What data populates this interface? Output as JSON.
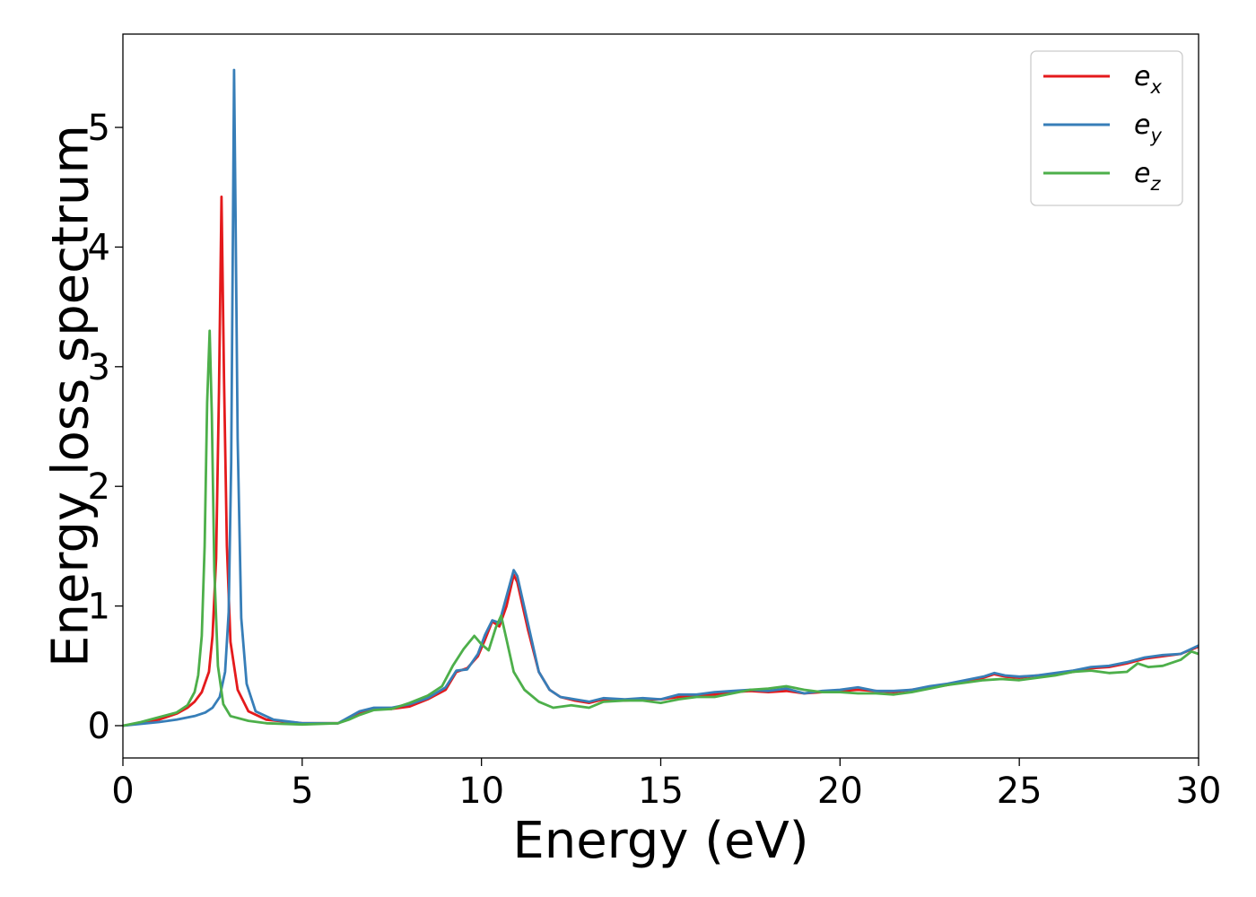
{
  "chart_data": {
    "type": "line",
    "title": "",
    "xlabel": "Energy (eV)",
    "ylabel": "Energy loss spectrum",
    "xlim": [
      0,
      30
    ],
    "ylim": [
      -0.27,
      5.78
    ],
    "xticks": [
      0,
      5,
      10,
      15,
      20,
      25,
      30
    ],
    "yticks": [
      0,
      1,
      2,
      3,
      4,
      5
    ],
    "grid": false,
    "legend_position": "top-right",
    "series": [
      {
        "name": "e_x",
        "label_base": "e",
        "label_sub": "x",
        "color": "#e41a1c",
        "points": [
          [
            0,
            0
          ],
          [
            0.5,
            0.02
          ],
          [
            1.0,
            0.05
          ],
          [
            1.5,
            0.1
          ],
          [
            1.8,
            0.15
          ],
          [
            2.0,
            0.2
          ],
          [
            2.2,
            0.28
          ],
          [
            2.4,
            0.45
          ],
          [
            2.5,
            0.75
          ],
          [
            2.6,
            1.4
          ],
          [
            2.68,
            2.8
          ],
          [
            2.75,
            4.42
          ],
          [
            2.82,
            2.9
          ],
          [
            2.9,
            1.5
          ],
          [
            3.0,
            0.7
          ],
          [
            3.2,
            0.3
          ],
          [
            3.5,
            0.12
          ],
          [
            4.0,
            0.05
          ],
          [
            5.0,
            0.02
          ],
          [
            6.0,
            0.02
          ],
          [
            6.3,
            0.06
          ],
          [
            6.6,
            0.1
          ],
          [
            7.0,
            0.14
          ],
          [
            7.5,
            0.14
          ],
          [
            8.0,
            0.16
          ],
          [
            8.5,
            0.22
          ],
          [
            9.0,
            0.3
          ],
          [
            9.3,
            0.45
          ],
          [
            9.6,
            0.48
          ],
          [
            9.9,
            0.58
          ],
          [
            10.1,
            0.72
          ],
          [
            10.3,
            0.87
          ],
          [
            10.5,
            0.83
          ],
          [
            10.7,
            1.0
          ],
          [
            10.9,
            1.26
          ],
          [
            11.0,
            1.2
          ],
          [
            11.3,
            0.8
          ],
          [
            11.6,
            0.45
          ],
          [
            11.9,
            0.3
          ],
          [
            12.2,
            0.24
          ],
          [
            12.6,
            0.21
          ],
          [
            13.0,
            0.19
          ],
          [
            13.4,
            0.22
          ],
          [
            14.0,
            0.21
          ],
          [
            14.5,
            0.22
          ],
          [
            15.0,
            0.22
          ],
          [
            15.5,
            0.24
          ],
          [
            16.0,
            0.25
          ],
          [
            16.5,
            0.26
          ],
          [
            17.0,
            0.28
          ],
          [
            17.5,
            0.29
          ],
          [
            18.0,
            0.28
          ],
          [
            18.5,
            0.29
          ],
          [
            19.0,
            0.27
          ],
          [
            19.5,
            0.28
          ],
          [
            20.0,
            0.29
          ],
          [
            20.5,
            0.3
          ],
          [
            21.0,
            0.29
          ],
          [
            21.5,
            0.28
          ],
          [
            22.0,
            0.3
          ],
          [
            22.5,
            0.32
          ],
          [
            23.0,
            0.34
          ],
          [
            23.5,
            0.37
          ],
          [
            24.0,
            0.4
          ],
          [
            24.3,
            0.43
          ],
          [
            24.6,
            0.41
          ],
          [
            25.0,
            0.4
          ],
          [
            25.5,
            0.42
          ],
          [
            26.0,
            0.43
          ],
          [
            26.5,
            0.45
          ],
          [
            27.0,
            0.48
          ],
          [
            27.5,
            0.49
          ],
          [
            28.0,
            0.52
          ],
          [
            28.5,
            0.56
          ],
          [
            29.0,
            0.58
          ],
          [
            29.5,
            0.6
          ],
          [
            30.0,
            0.66
          ]
        ]
      },
      {
        "name": "e_y",
        "label_base": "e",
        "label_sub": "y",
        "color": "#377eb8",
        "points": [
          [
            0,
            0
          ],
          [
            0.5,
            0.015
          ],
          [
            1.0,
            0.03
          ],
          [
            1.5,
            0.05
          ],
          [
            2.0,
            0.08
          ],
          [
            2.3,
            0.11
          ],
          [
            2.5,
            0.15
          ],
          [
            2.7,
            0.24
          ],
          [
            2.85,
            0.45
          ],
          [
            2.95,
            0.95
          ],
          [
            3.02,
            2.2
          ],
          [
            3.07,
            4.2
          ],
          [
            3.1,
            5.48
          ],
          [
            3.14,
            4.3
          ],
          [
            3.2,
            2.4
          ],
          [
            3.3,
            0.9
          ],
          [
            3.45,
            0.35
          ],
          [
            3.7,
            0.12
          ],
          [
            4.2,
            0.05
          ],
          [
            5.0,
            0.02
          ],
          [
            6.0,
            0.02
          ],
          [
            6.3,
            0.07
          ],
          [
            6.6,
            0.12
          ],
          [
            7.0,
            0.15
          ],
          [
            7.5,
            0.15
          ],
          [
            8.0,
            0.18
          ],
          [
            8.5,
            0.23
          ],
          [
            9.0,
            0.32
          ],
          [
            9.3,
            0.46
          ],
          [
            9.6,
            0.47
          ],
          [
            9.9,
            0.6
          ],
          [
            10.1,
            0.76
          ],
          [
            10.3,
            0.88
          ],
          [
            10.5,
            0.86
          ],
          [
            10.7,
            1.08
          ],
          [
            10.9,
            1.3
          ],
          [
            11.0,
            1.25
          ],
          [
            11.3,
            0.85
          ],
          [
            11.6,
            0.45
          ],
          [
            11.9,
            0.3
          ],
          [
            12.2,
            0.24
          ],
          [
            12.6,
            0.22
          ],
          [
            13.0,
            0.2
          ],
          [
            13.4,
            0.23
          ],
          [
            14.0,
            0.22
          ],
          [
            14.5,
            0.23
          ],
          [
            15.0,
            0.22
          ],
          [
            15.5,
            0.26
          ],
          [
            16.0,
            0.26
          ],
          [
            16.5,
            0.28
          ],
          [
            17.0,
            0.29
          ],
          [
            17.5,
            0.3
          ],
          [
            18.0,
            0.29
          ],
          [
            18.5,
            0.31
          ],
          [
            19.0,
            0.27
          ],
          [
            19.5,
            0.29
          ],
          [
            20.0,
            0.3
          ],
          [
            20.5,
            0.32
          ],
          [
            21.0,
            0.29
          ],
          [
            21.5,
            0.29
          ],
          [
            22.0,
            0.3
          ],
          [
            22.5,
            0.33
          ],
          [
            23.0,
            0.35
          ],
          [
            23.5,
            0.38
          ],
          [
            24.0,
            0.41
          ],
          [
            24.3,
            0.44
          ],
          [
            24.6,
            0.42
          ],
          [
            25.0,
            0.41
          ],
          [
            25.5,
            0.42
          ],
          [
            26.0,
            0.44
          ],
          [
            26.5,
            0.46
          ],
          [
            27.0,
            0.49
          ],
          [
            27.5,
            0.5
          ],
          [
            28.0,
            0.53
          ],
          [
            28.5,
            0.57
          ],
          [
            29.0,
            0.59
          ],
          [
            29.5,
            0.6
          ],
          [
            30.0,
            0.67
          ]
        ]
      },
      {
        "name": "e_z",
        "label_base": "e",
        "label_sub": "z",
        "color": "#4daf4a",
        "points": [
          [
            0,
            0
          ],
          [
            0.5,
            0.03
          ],
          [
            1.0,
            0.07
          ],
          [
            1.5,
            0.11
          ],
          [
            1.8,
            0.17
          ],
          [
            2.0,
            0.28
          ],
          [
            2.1,
            0.42
          ],
          [
            2.2,
            0.75
          ],
          [
            2.28,
            1.5
          ],
          [
            2.35,
            2.7
          ],
          [
            2.42,
            3.3
          ],
          [
            2.48,
            2.6
          ],
          [
            2.55,
            1.3
          ],
          [
            2.65,
            0.5
          ],
          [
            2.8,
            0.18
          ],
          [
            3.0,
            0.08
          ],
          [
            3.5,
            0.04
          ],
          [
            4.0,
            0.02
          ],
          [
            5.0,
            0.01
          ],
          [
            6.0,
            0.02
          ],
          [
            6.3,
            0.05
          ],
          [
            6.6,
            0.09
          ],
          [
            7.0,
            0.13
          ],
          [
            7.5,
            0.14
          ],
          [
            8.0,
            0.19
          ],
          [
            8.5,
            0.25
          ],
          [
            8.9,
            0.33
          ],
          [
            9.2,
            0.5
          ],
          [
            9.5,
            0.64
          ],
          [
            9.8,
            0.75
          ],
          [
            10.0,
            0.68
          ],
          [
            10.2,
            0.63
          ],
          [
            10.4,
            0.82
          ],
          [
            10.55,
            0.92
          ],
          [
            10.7,
            0.72
          ],
          [
            10.9,
            0.45
          ],
          [
            11.2,
            0.3
          ],
          [
            11.6,
            0.2
          ],
          [
            12.0,
            0.15
          ],
          [
            12.5,
            0.17
          ],
          [
            13.0,
            0.15
          ],
          [
            13.4,
            0.2
          ],
          [
            14.0,
            0.21
          ],
          [
            14.5,
            0.21
          ],
          [
            15.0,
            0.19
          ],
          [
            15.5,
            0.22
          ],
          [
            16.0,
            0.24
          ],
          [
            16.5,
            0.24
          ],
          [
            17.0,
            0.27
          ],
          [
            17.5,
            0.3
          ],
          [
            18.0,
            0.31
          ],
          [
            18.5,
            0.33
          ],
          [
            19.0,
            0.3
          ],
          [
            19.5,
            0.28
          ],
          [
            20.0,
            0.28
          ],
          [
            20.5,
            0.27
          ],
          [
            21.0,
            0.27
          ],
          [
            21.5,
            0.26
          ],
          [
            22.0,
            0.28
          ],
          [
            22.5,
            0.31
          ],
          [
            23.0,
            0.34
          ],
          [
            23.5,
            0.36
          ],
          [
            24.0,
            0.38
          ],
          [
            24.5,
            0.39
          ],
          [
            25.0,
            0.38
          ],
          [
            25.5,
            0.4
          ],
          [
            26.0,
            0.42
          ],
          [
            26.5,
            0.45
          ],
          [
            27.0,
            0.46
          ],
          [
            27.5,
            0.44
          ],
          [
            28.0,
            0.45
          ],
          [
            28.3,
            0.52
          ],
          [
            28.6,
            0.49
          ],
          [
            29.0,
            0.5
          ],
          [
            29.5,
            0.55
          ],
          [
            29.8,
            0.62
          ],
          [
            30.0,
            0.6
          ]
        ]
      }
    ]
  }
}
